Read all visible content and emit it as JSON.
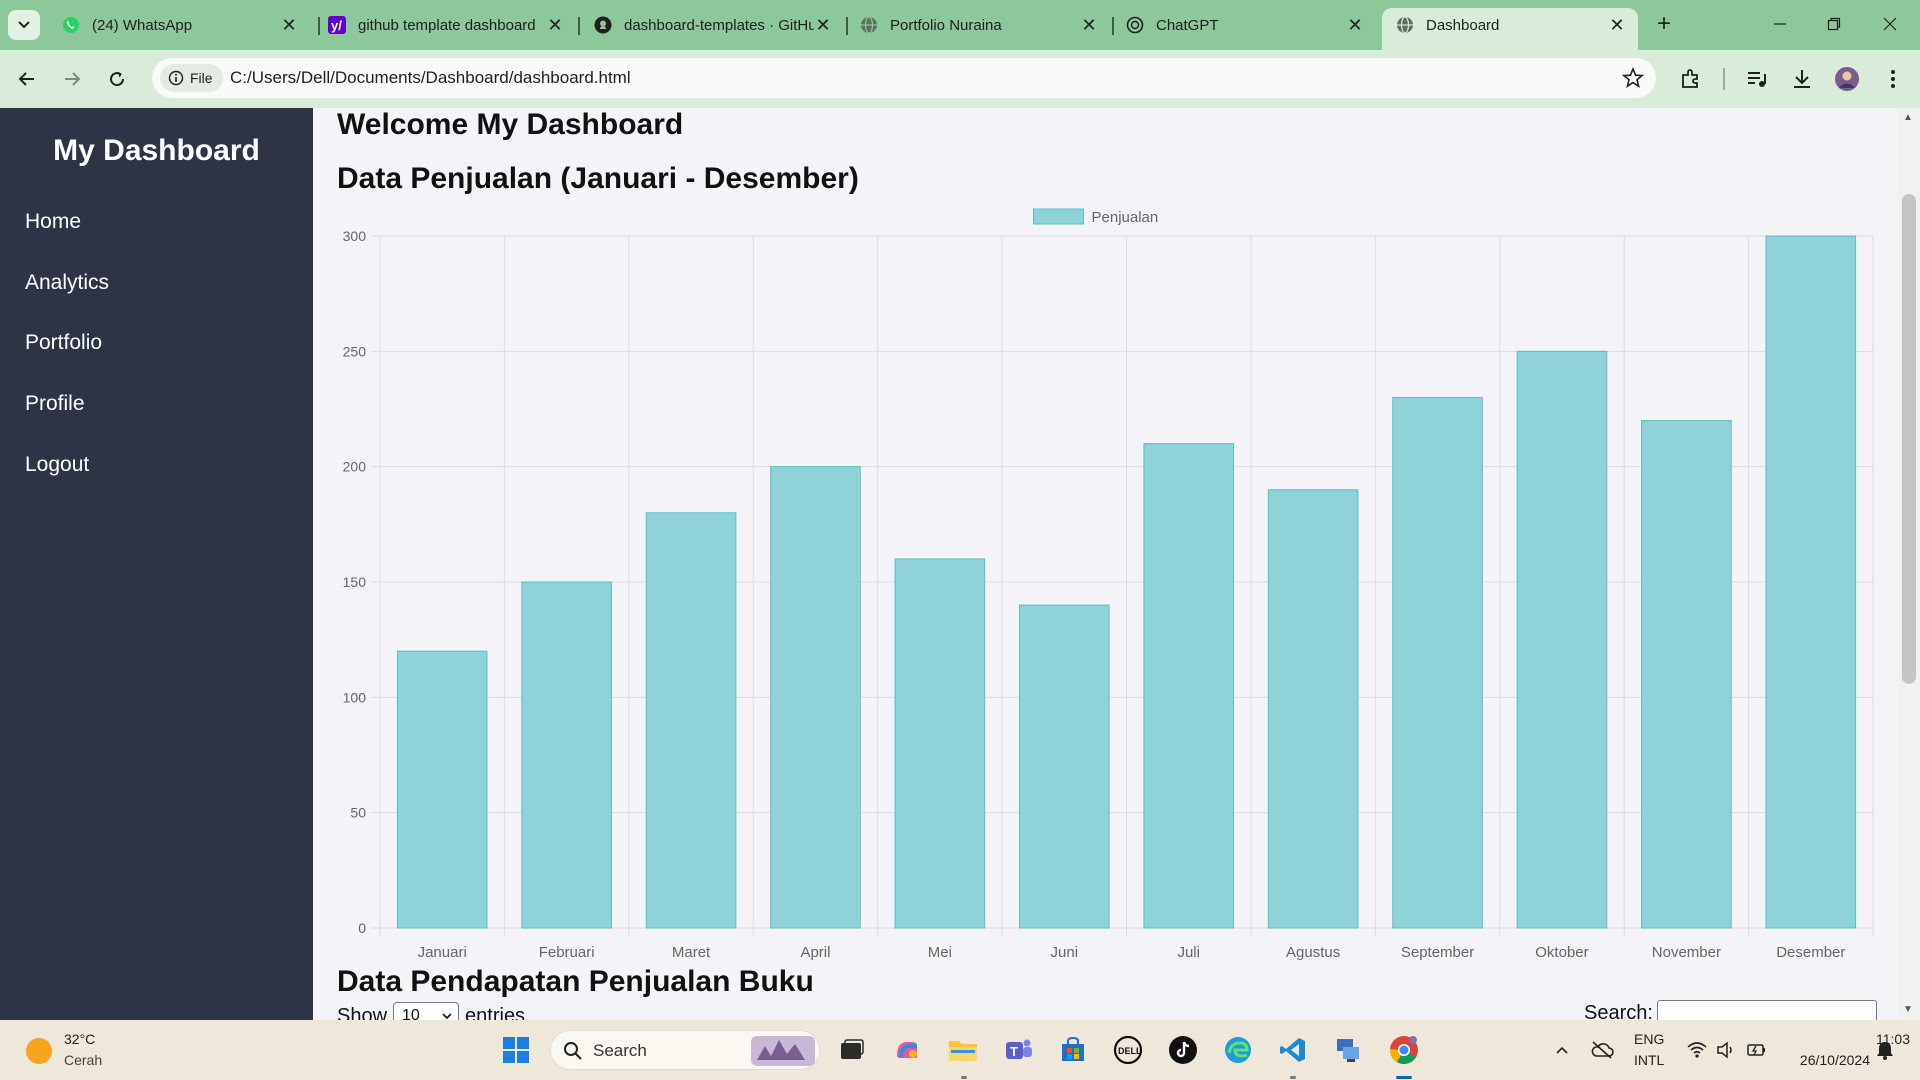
{
  "browser": {
    "tabs": [
      {
        "title": "(24) WhatsApp",
        "icon": "whatsapp-icon"
      },
      {
        "title": "github template dashboard",
        "icon": "yahoo-icon"
      },
      {
        "title": "dashboard-templates · GitHub",
        "icon": "github-icon"
      },
      {
        "title": "Portfolio Nuraina",
        "icon": "globe-icon"
      },
      {
        "title": "ChatGPT",
        "icon": "chatgpt-icon"
      },
      {
        "title": "Dashboard",
        "icon": "globe-icon"
      }
    ],
    "active_tab_index": 5,
    "file_chip": "File",
    "url": "C:/Users/Dell/Documents/Dashboard/dashboard.html"
  },
  "page": {
    "brand": "My Dashboard",
    "nav": [
      {
        "label": "Home"
      },
      {
        "label": "Analytics"
      },
      {
        "label": "Portfolio"
      },
      {
        "label": "Profile"
      },
      {
        "label": "Logout"
      }
    ],
    "welcome_title": "Welcome My Dashboard",
    "sales_title": "Data Penjualan (Januari - Desember)",
    "income_title": "Data Pendapatan Penjualan Buku",
    "table_controls": {
      "show_label": "Show",
      "entries_value": "10",
      "entries_label": "entries",
      "search_label": "Search:"
    }
  },
  "chart_data": {
    "type": "bar",
    "categories": [
      "Januari",
      "Februari",
      "Maret",
      "April",
      "Mei",
      "Juni",
      "Juli",
      "Agustus",
      "September",
      "Oktober",
      "November",
      "Desember"
    ],
    "series": [
      {
        "name": "Penjualan",
        "values": [
          120,
          150,
          180,
          200,
          160,
          140,
          210,
          190,
          230,
          250,
          220,
          300
        ]
      }
    ],
    "ylim": [
      0,
      300
    ],
    "yticks": [
      0,
      50,
      100,
      150,
      200,
      250,
      300
    ],
    "grid": true,
    "legend_position": "top-center",
    "bar_color": "#8fd3d8",
    "bar_border_color": "#58bfc4"
  },
  "taskbar": {
    "weather_temp": "32°C",
    "weather_desc": "Cerah",
    "search_label": "Search",
    "lang_1": "ENG",
    "lang_2": "INTL",
    "time": "11:03",
    "date": "26/10/2024"
  }
}
